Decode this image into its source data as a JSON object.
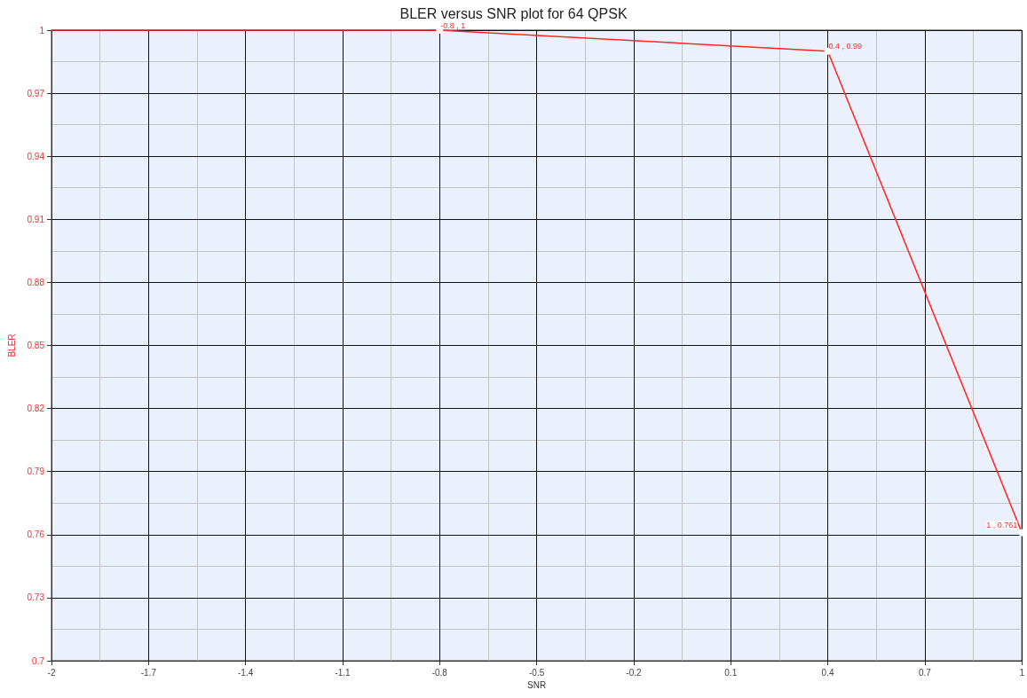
{
  "chart_data": {
    "type": "line",
    "title": "BLER versus SNR plot for 64 QPSK",
    "xlabel": "SNR",
    "ylabel": "BLER",
    "x": [
      -2,
      -0.8,
      0.4,
      1
    ],
    "series": [
      {
        "color": "#ff2a2a",
        "values": [
          1,
          1,
          0.99,
          0.761
        ],
        "value_labels": [
          null,
          "-0.8 , 1",
          "0.4 , 0.99",
          "1 , 0.761"
        ]
      }
    ],
    "xlim": [
      -2,
      1
    ],
    "xticks": [
      -2,
      -1.7,
      -1.4,
      -1.1,
      -0.8,
      -0.5,
      -0.2,
      0.1,
      0.4,
      0.7,
      1
    ],
    "ylim": [
      0.7,
      1
    ],
    "yticks": [
      0.7,
      0.73,
      0.76,
      0.79,
      0.82,
      0.85,
      0.88,
      0.91,
      0.94,
      0.97,
      1
    ],
    "grid": true,
    "marker": "circle",
    "line_style": "solid"
  }
}
